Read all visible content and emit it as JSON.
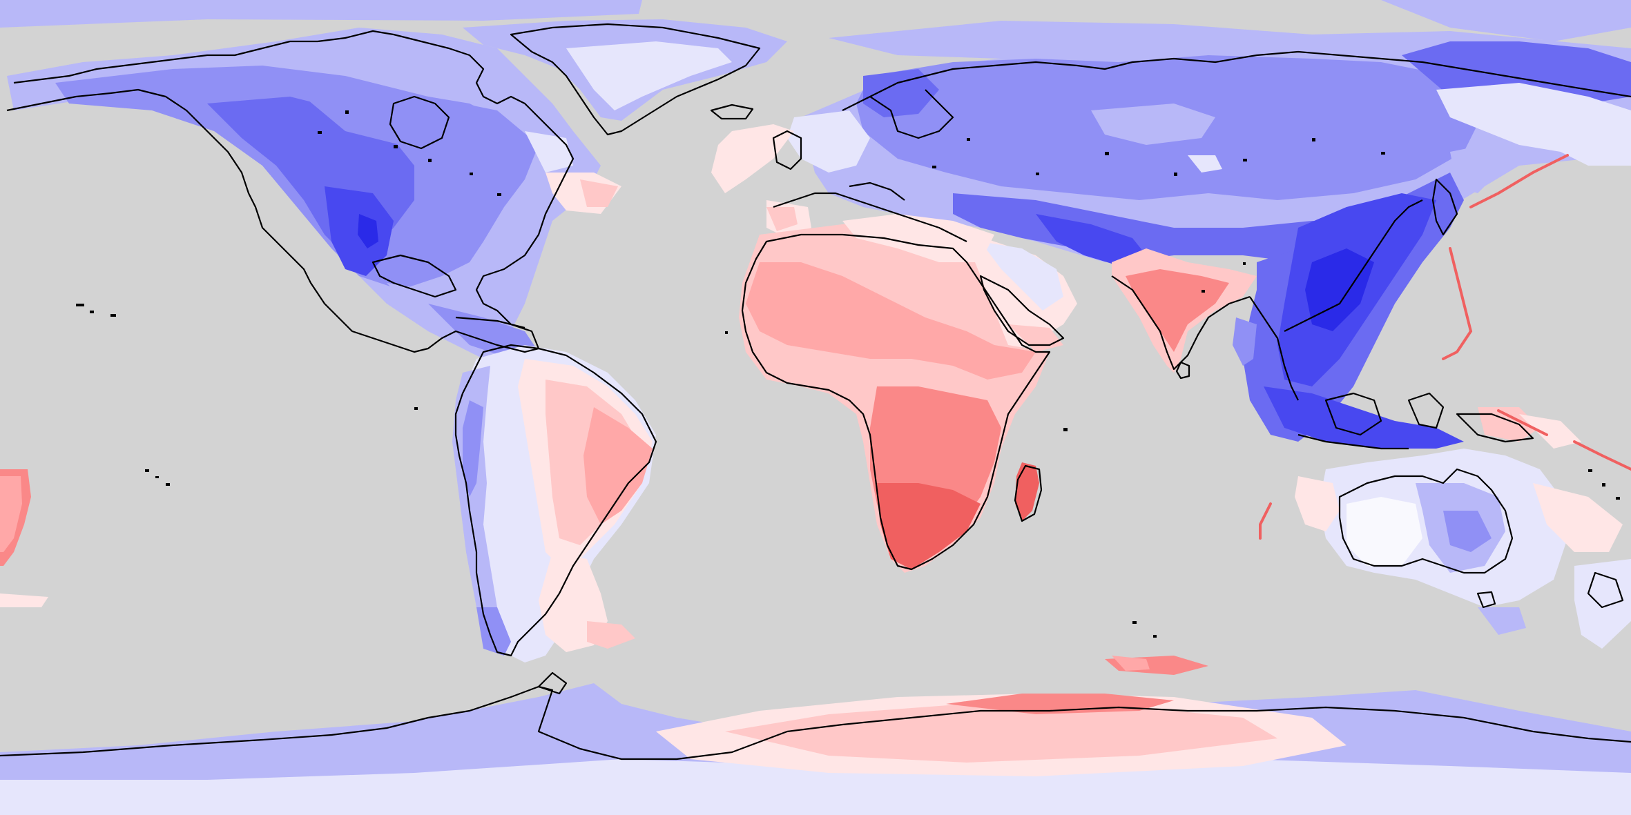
{
  "map": {
    "projection": "equirectangular",
    "extent": {
      "lon": [
        -180,
        180
      ],
      "lat": [
        -90,
        90
      ]
    },
    "ocean_color": "#d3d3d3",
    "coastline_color": "#000000",
    "legend": [],
    "title": "",
    "color_scale": {
      "type": "diverging",
      "levels": [
        "-5",
        "-4",
        "-3",
        "-2",
        "-1",
        "0",
        "1",
        "2",
        "3",
        "4",
        "5"
      ],
      "colors": [
        "#2a2ae8",
        "#4848f0",
        "#6b6bf2",
        "#9090f5",
        "#b8b8f8",
        "#e6e6fc",
        "#ffe6e6",
        "#ffc8c8",
        "#ffa8a8",
        "#fa8888",
        "#f06060"
      ]
    }
  }
}
